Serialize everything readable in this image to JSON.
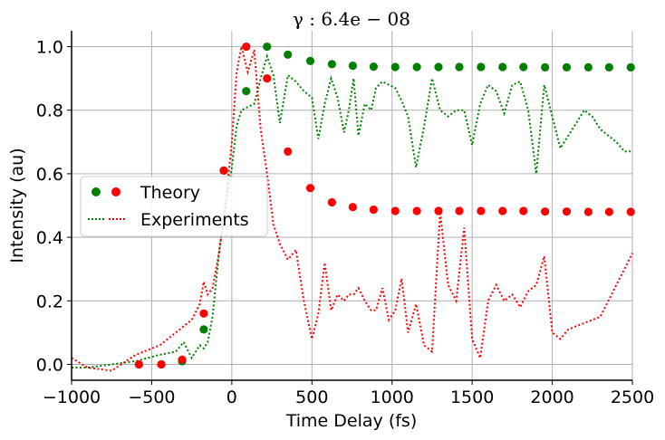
{
  "chart_data": {
    "type": "scatter",
    "title": "γ : 6.4e − 08",
    "xlabel": "Time Delay (fs)",
    "ylabel": "Intensity (au)",
    "xlim": [
      -1000,
      2500
    ],
    "ylim": [
      -0.05,
      1.05
    ],
    "xticks": [
      -1000,
      -500,
      0,
      500,
      1000,
      1500,
      2000,
      2500
    ],
    "xtick_labels": [
      "−1000",
      "−500",
      "0",
      "500",
      "1000",
      "1500",
      "2000",
      "2500"
    ],
    "yticks": [
      0.0,
      0.2,
      0.4,
      0.6,
      0.8,
      1.0
    ],
    "ytick_labels": [
      "0.0",
      "0.2",
      "0.4",
      "0.6",
      "0.8",
      "1.0"
    ],
    "grid": true,
    "legend": {
      "placement": "center-left",
      "entries": [
        "Theory",
        "Experiments"
      ]
    },
    "colors": {
      "green": "#008000",
      "red": "#ff0000"
    },
    "series": [
      {
        "kind": "theory",
        "color": "#008000",
        "x": [
          -580,
          -440,
          -310,
          -175,
          -50,
          90,
          220,
          350,
          490,
          625,
          755,
          885,
          1020,
          1155,
          1290,
          1420,
          1555,
          1690,
          1820,
          1955,
          2090,
          2225,
          2355,
          2490
        ],
        "y": [
          0.0,
          0.0,
          0.01,
          0.11,
          0.61,
          0.86,
          1.0,
          0.975,
          0.955,
          0.945,
          0.94,
          0.937,
          0.936,
          0.936,
          0.936,
          0.936,
          0.936,
          0.936,
          0.936,
          0.935,
          0.935,
          0.935,
          0.935,
          0.935
        ]
      },
      {
        "kind": "theory",
        "color": "#ff0000",
        "x": [
          -580,
          -440,
          -310,
          -175,
          -50,
          90,
          220,
          350,
          490,
          625,
          755,
          885,
          1020,
          1155,
          1290,
          1420,
          1555,
          1690,
          1820,
          1955,
          2090,
          2225,
          2355,
          2490
        ],
        "y": [
          0.0,
          0.0,
          0.015,
          0.16,
          0.61,
          1.0,
          0.9,
          0.67,
          0.555,
          0.51,
          0.495,
          0.487,
          0.483,
          0.483,
          0.483,
          0.483,
          0.483,
          0.483,
          0.483,
          0.481,
          0.481,
          0.48,
          0.48,
          0.48
        ]
      },
      {
        "kind": "experiment",
        "color": "#008000",
        "x": [
          -1000,
          -900,
          -750,
          -600,
          -450,
          -350,
          -300,
          -250,
          -200,
          -175,
          -150,
          -120,
          -80,
          -40,
          0,
          30,
          60,
          100,
          140,
          180,
          220,
          260,
          300,
          350,
          400,
          450,
          500,
          540,
          580,
          620,
          660,
          700,
          730,
          760,
          790,
          830,
          870,
          900,
          940,
          980,
          1020,
          1060,
          1100,
          1150,
          1200,
          1250,
          1300,
          1350,
          1400,
          1450,
          1500,
          1550,
          1600,
          1650,
          1700,
          1750,
          1800,
          1850,
          1900,
          1950,
          2000,
          2050,
          2100,
          2150,
          2200,
          2250,
          2300,
          2350,
          2400,
          2450,
          2500
        ],
        "y": [
          -0.01,
          -0.01,
          0.0,
          0.01,
          0.03,
          0.04,
          0.07,
          0.02,
          0.06,
          0.05,
          0.07,
          0.15,
          0.35,
          0.5,
          0.62,
          0.75,
          0.8,
          0.81,
          0.82,
          0.9,
          0.97,
          0.91,
          0.76,
          0.91,
          0.89,
          0.86,
          0.84,
          0.71,
          0.82,
          0.9,
          0.84,
          0.73,
          0.8,
          0.9,
          0.72,
          0.82,
          0.8,
          0.87,
          0.89,
          0.88,
          0.87,
          0.83,
          0.78,
          0.62,
          0.75,
          0.9,
          0.8,
          0.78,
          0.8,
          0.8,
          0.69,
          0.82,
          0.88,
          0.86,
          0.79,
          0.88,
          0.89,
          0.8,
          0.6,
          0.88,
          0.78,
          0.68,
          0.72,
          0.76,
          0.8,
          0.78,
          0.74,
          0.72,
          0.7,
          0.67,
          0.67
        ]
      },
      {
        "kind": "experiment",
        "color": "#ff0000",
        "x": [
          -1000,
          -900,
          -750,
          -600,
          -450,
          -350,
          -300,
          -250,
          -200,
          -175,
          -150,
          -120,
          -80,
          -40,
          0,
          30,
          60,
          100,
          140,
          180,
          220,
          260,
          300,
          350,
          400,
          450,
          500,
          540,
          580,
          620,
          660,
          700,
          730,
          760,
          790,
          830,
          870,
          900,
          940,
          980,
          1020,
          1060,
          1100,
          1150,
          1200,
          1250,
          1300,
          1350,
          1400,
          1450,
          1500,
          1550,
          1600,
          1650,
          1700,
          1750,
          1800,
          1850,
          1900,
          1950,
          2000,
          2050,
          2100,
          2150,
          2200,
          2250,
          2300,
          2350,
          2400,
          2450,
          2500
        ],
        "y": [
          0.02,
          -0.01,
          -0.02,
          0.03,
          0.06,
          0.1,
          0.12,
          0.14,
          0.19,
          0.26,
          0.22,
          0.24,
          0.35,
          0.5,
          0.7,
          0.92,
          1.0,
          0.92,
          0.99,
          0.74,
          0.6,
          0.44,
          0.38,
          0.33,
          0.36,
          0.2,
          0.08,
          0.16,
          0.32,
          0.17,
          0.22,
          0.2,
          0.22,
          0.22,
          0.24,
          0.2,
          0.17,
          0.17,
          0.24,
          0.14,
          0.17,
          0.27,
          0.1,
          0.19,
          0.06,
          0.04,
          0.48,
          0.25,
          0.2,
          0.43,
          0.08,
          0.02,
          0.2,
          0.25,
          0.2,
          0.22,
          0.18,
          0.23,
          0.25,
          0.34,
          0.1,
          0.08,
          0.11,
          0.12,
          0.13,
          0.14,
          0.15,
          0.2,
          0.25,
          0.3,
          0.35
        ]
      }
    ]
  }
}
